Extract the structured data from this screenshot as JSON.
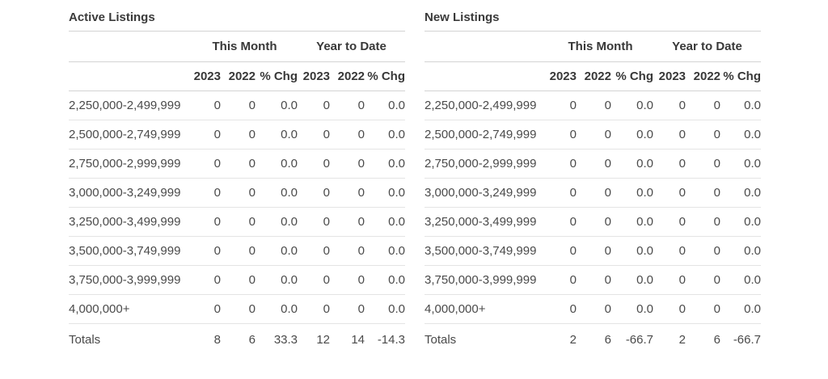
{
  "colors": {
    "text": "#4a4a4a",
    "heading": "#383838",
    "rule_strong": "#d3d3d3",
    "rule_light": "#e4e4e4",
    "background": "#ffffff"
  },
  "tables": [
    {
      "title": "Active Listings",
      "group_headers": [
        "This Month",
        "Year to Date"
      ],
      "col_headers": [
        "2023",
        "2022",
        "% Chg",
        "2023",
        "2022",
        "% Chg"
      ],
      "rows": [
        {
          "label": "2,250,000-2,499,999",
          "values": [
            "0",
            "0",
            "0.0",
            "0",
            "0",
            "0.0"
          ]
        },
        {
          "label": "2,500,000-2,749,999",
          "values": [
            "0",
            "0",
            "0.0",
            "0",
            "0",
            "0.0"
          ]
        },
        {
          "label": "2,750,000-2,999,999",
          "values": [
            "0",
            "0",
            "0.0",
            "0",
            "0",
            "0.0"
          ]
        },
        {
          "label": "3,000,000-3,249,999",
          "values": [
            "0",
            "0",
            "0.0",
            "0",
            "0",
            "0.0"
          ]
        },
        {
          "label": "3,250,000-3,499,999",
          "values": [
            "0",
            "0",
            "0.0",
            "0",
            "0",
            "0.0"
          ]
        },
        {
          "label": "3,500,000-3,749,999",
          "values": [
            "0",
            "0",
            "0.0",
            "0",
            "0",
            "0.0"
          ]
        },
        {
          "label": "3,750,000-3,999,999",
          "values": [
            "0",
            "0",
            "0.0",
            "0",
            "0",
            "0.0"
          ]
        },
        {
          "label": "4,000,000+",
          "values": [
            "0",
            "0",
            "0.0",
            "0",
            "0",
            "0.0"
          ]
        }
      ],
      "totals": {
        "label": "Totals",
        "values": [
          "8",
          "6",
          "33.3",
          "12",
          "14",
          "-14.3"
        ]
      }
    },
    {
      "title": "New Listings",
      "group_headers": [
        "This Month",
        "Year to Date"
      ],
      "col_headers": [
        "2023",
        "2022",
        "% Chg",
        "2023",
        "2022",
        "% Chg"
      ],
      "rows": [
        {
          "label": "2,250,000-2,499,999",
          "values": [
            "0",
            "0",
            "0.0",
            "0",
            "0",
            "0.0"
          ]
        },
        {
          "label": "2,500,000-2,749,999",
          "values": [
            "0",
            "0",
            "0.0",
            "0",
            "0",
            "0.0"
          ]
        },
        {
          "label": "2,750,000-2,999,999",
          "values": [
            "0",
            "0",
            "0.0",
            "0",
            "0",
            "0.0"
          ]
        },
        {
          "label": "3,000,000-3,249,999",
          "values": [
            "0",
            "0",
            "0.0",
            "0",
            "0",
            "0.0"
          ]
        },
        {
          "label": "3,250,000-3,499,999",
          "values": [
            "0",
            "0",
            "0.0",
            "0",
            "0",
            "0.0"
          ]
        },
        {
          "label": "3,500,000-3,749,999",
          "values": [
            "0",
            "0",
            "0.0",
            "0",
            "0",
            "0.0"
          ]
        },
        {
          "label": "3,750,000-3,999,999",
          "values": [
            "0",
            "0",
            "0.0",
            "0",
            "0",
            "0.0"
          ]
        },
        {
          "label": "4,000,000+",
          "values": [
            "0",
            "0",
            "0.0",
            "0",
            "0",
            "0.0"
          ]
        }
      ],
      "totals": {
        "label": "Totals",
        "values": [
          "2",
          "6",
          "-66.7",
          "2",
          "6",
          "-66.7"
        ]
      }
    }
  ]
}
